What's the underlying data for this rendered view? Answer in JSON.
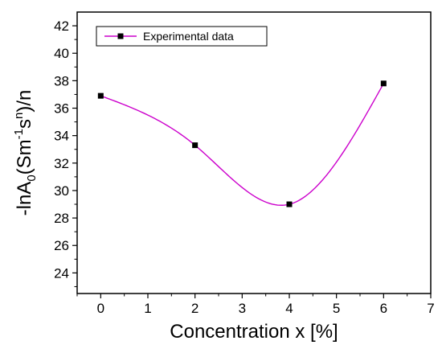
{
  "chart_data": {
    "type": "line",
    "xlabel": "Concentration x [%]",
    "ylabel": {
      "prefix": "-lnA",
      "sub0": "0",
      "paren_open": "(Sm",
      "sup1": "-1",
      "s": "s",
      "supn": "n",
      "suffix": ")/n"
    },
    "xlim": [
      -0.5,
      7
    ],
    "ylim": [
      22.5,
      43
    ],
    "xticks": [
      0,
      1,
      2,
      3,
      4,
      5,
      6,
      7
    ],
    "yticks": [
      24,
      26,
      28,
      30,
      32,
      34,
      36,
      38,
      40,
      42
    ],
    "grid": false,
    "legend_position": "top-left",
    "series": [
      {
        "name": "Experimental data",
        "marker": "square",
        "marker_color": "#000000",
        "line_color": "#cc00cc",
        "points": [
          {
            "x": 0,
            "y": 36.9
          },
          {
            "x": 2,
            "y": 33.3
          },
          {
            "x": 4,
            "y": 29.0
          },
          {
            "x": 6,
            "y": 37.8
          }
        ]
      }
    ]
  }
}
